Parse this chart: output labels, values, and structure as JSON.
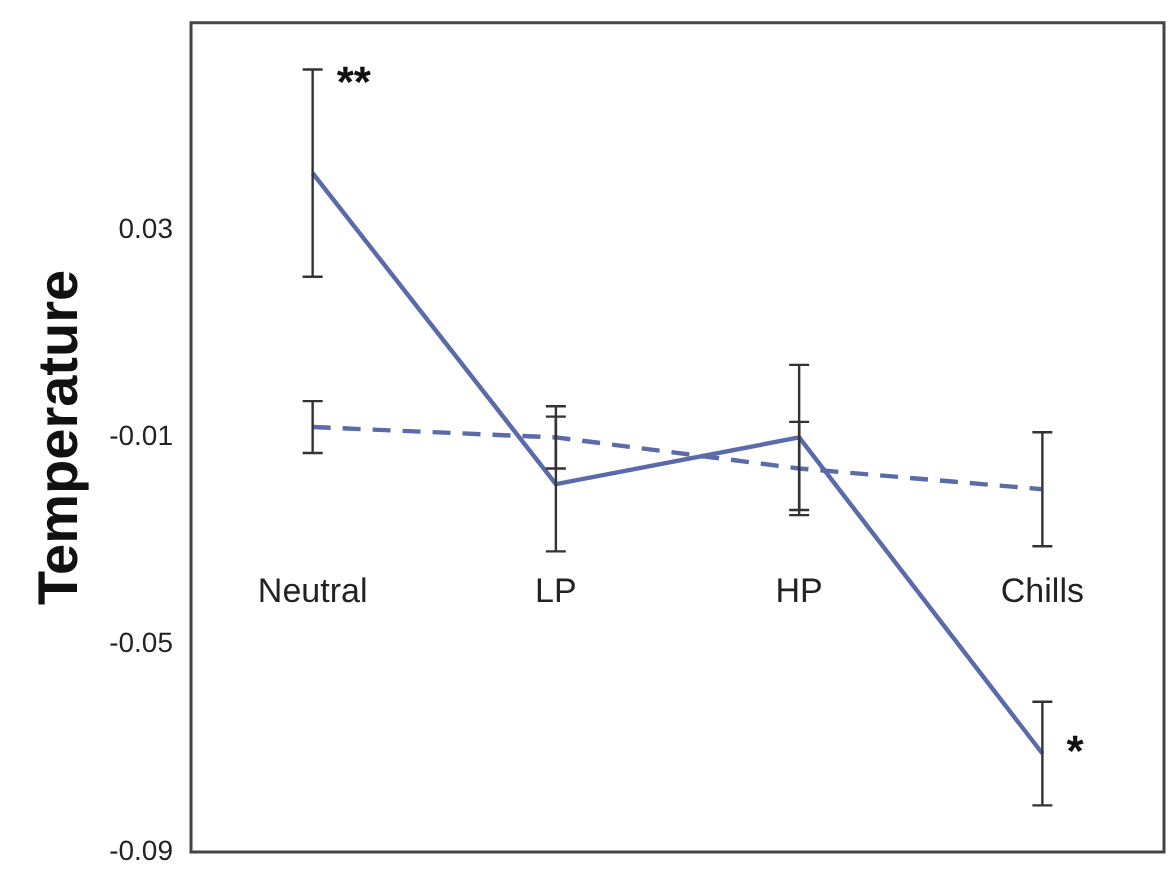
{
  "chart_data": {
    "type": "line",
    "ylabel": "Temperature",
    "categories": [
      "Neutral",
      "LP",
      "HP",
      "Chills"
    ],
    "series": [
      {
        "color": "#5b6aa8",
        "line_style": "solid",
        "values": [
          0.041,
          -0.019,
          -0.01,
          -0.071
        ],
        "errors": [
          0.02,
          0.013,
          0.014,
          0.01
        ]
      },
      {
        "color": "#5b6aa8",
        "line_style": "dashed",
        "values": [
          -0.008,
          -0.01,
          -0.016,
          -0.02
        ],
        "errors": [
          0.005,
          0.006,
          0.009,
          0.011
        ]
      }
    ],
    "ylim": [
      -0.09,
      0.07
    ],
    "yticks": [
      0.03,
      -0.01,
      -0.05,
      -0.09
    ],
    "grid": false,
    "legend": false,
    "marker": "none",
    "annotations": [
      {
        "text": "**",
        "x": "Neutral",
        "y": 0.058
      },
      {
        "text": "*",
        "x": "Chills",
        "y": -0.071
      }
    ]
  }
}
